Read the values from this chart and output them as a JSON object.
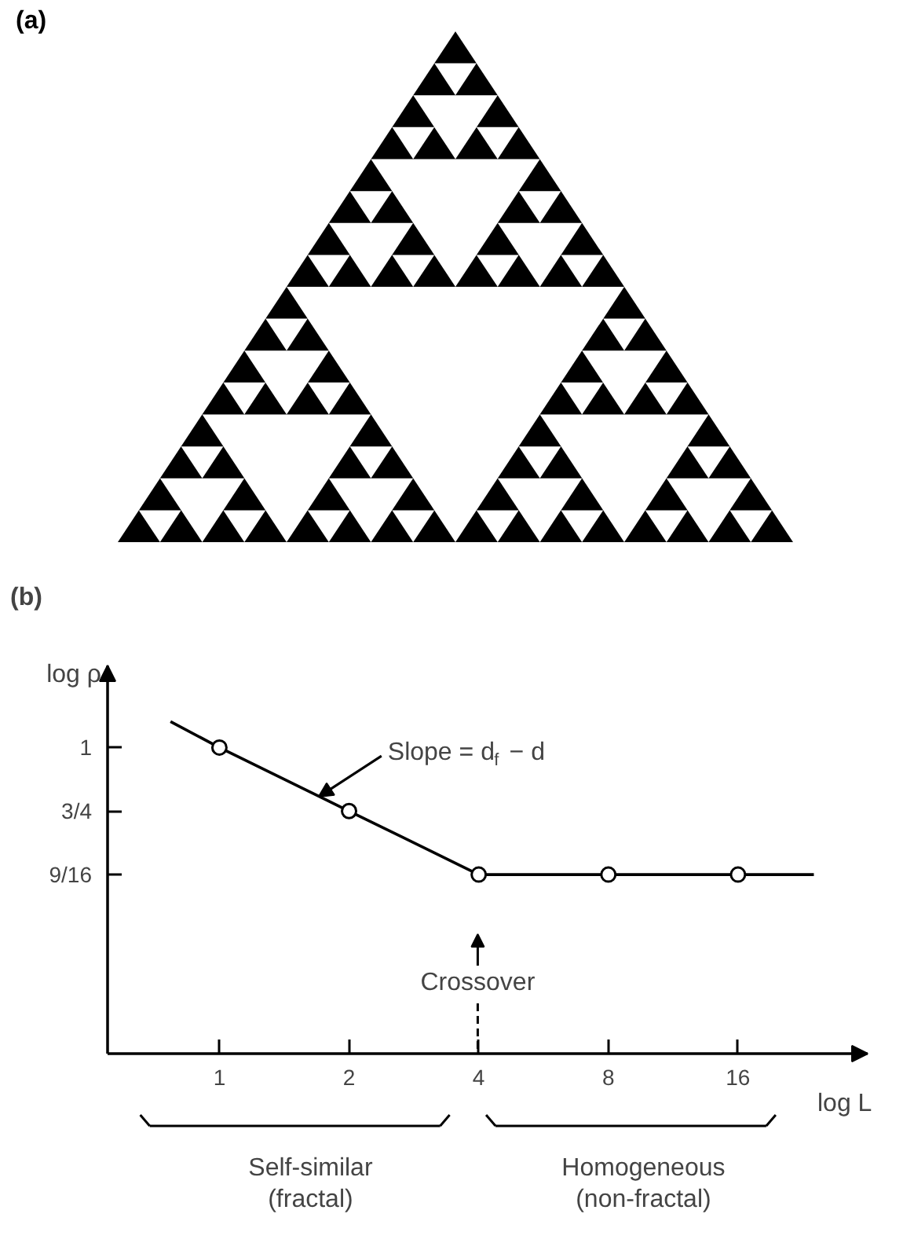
{
  "chart_data": [
    {
      "type": "other",
      "title": "(a)"
    },
    {
      "type": "line",
      "title": "(b)",
      "xlabel": "log L",
      "ylabel": "log ρ",
      "log": "xy",
      "xlim": [
        0.55,
        32
      ],
      "ylim": [
        0.25,
        1.45
      ],
      "xticks": [
        1,
        2,
        4,
        8,
        16
      ],
      "yticks": [
        {
          "value": 0.5625,
          "label": "9/16"
        },
        {
          "value": 0.75,
          "label": "3/4"
        },
        1
      ],
      "series": [
        {
          "type": "line",
          "color": "#000000",
          "x": [
            0.77,
            1,
            2,
            4,
            8,
            16,
            24
          ],
          "values": [
            1.125,
            1,
            0.75,
            0.5625,
            0.5625,
            0.5625,
            0.5625
          ]
        },
        {
          "type": "scatter",
          "marker": "circle",
          "color": "#000000",
          "x": [
            1,
            2,
            4,
            8,
            16
          ],
          "values": [
            1,
            0.75,
            0.5625,
            0.5625,
            0.5625
          ]
        }
      ],
      "annotations": [
        {
          "text": "Slope = d$_{f}$ − d",
          "x": 1.7,
          "y": 0.8
        },
        "Crossover",
        "Self-similar\n(fractal)",
        "Homogeneous\n(non-fractal)"
      ]
    }
  ]
}
